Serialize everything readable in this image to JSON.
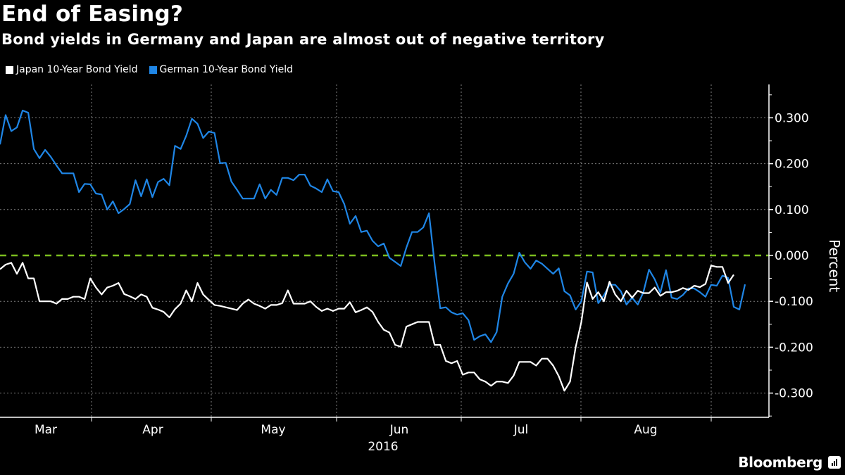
{
  "header": {
    "title": "End of Easing?",
    "subtitle": "Bond yields in Germany and Japan are almost out of negative territory"
  },
  "legend": [
    {
      "label": "Japan 10-Year Bond Yield",
      "color": "#ffffff"
    },
    {
      "label": "German 10-Year Bond Yield",
      "color": "#1f86e6"
    }
  ],
  "branding": {
    "name": "Bloomberg",
    "icon": "bloomberg-logo-icon"
  },
  "colors": {
    "background": "#000000",
    "grid": "#7f7f7f",
    "zero_line": "#7cbd1e",
    "japan": "#ffffff",
    "germany": "#1f86e6"
  },
  "chart_data": {
    "type": "line",
    "title": "End of Easing?",
    "subtitle": "Bond yields in Germany and Japan are almost out of negative territory",
    "xlabel": "2016",
    "ylabel": "Percent",
    "x_ticks": [
      "Mar",
      "Apr",
      "May",
      "Jun",
      "Jul",
      "Aug"
    ],
    "y_ticks": [
      "0.300",
      "0.200",
      "0.100",
      "0.000",
      "-0.100",
      "-0.200",
      "-0.300"
    ],
    "ylim": [
      -0.36,
      0.37
    ],
    "xlim_index": [
      0,
      131
    ],
    "y_axis_position": "right",
    "grid": true,
    "reference_line": {
      "value": 0.0,
      "style": "dashed"
    },
    "legend_position": "top-left",
    "series": [
      {
        "name": "German 10-Year Bond Yield",
        "values": [
          0.242,
          0.306,
          0.271,
          0.279,
          0.316,
          0.311,
          0.232,
          0.212,
          0.23,
          0.215,
          0.196,
          0.179,
          0.179,
          0.179,
          0.138,
          0.156,
          0.155,
          0.135,
          0.133,
          0.1,
          0.118,
          0.092,
          0.101,
          0.112,
          0.164,
          0.129,
          0.166,
          0.127,
          0.16,
          0.167,
          0.153,
          0.239,
          0.232,
          0.261,
          0.298,
          0.287,
          0.256,
          0.27,
          0.267,
          0.201,
          0.202,
          0.161,
          0.143,
          0.124,
          0.124,
          0.124,
          0.155,
          0.124,
          0.143,
          0.132,
          0.169,
          0.169,
          0.164,
          0.176,
          0.176,
          0.152,
          0.146,
          0.138,
          0.166,
          0.14,
          0.138,
          0.112,
          0.069,
          0.086,
          0.051,
          0.054,
          0.032,
          0.02,
          0.026,
          -0.005,
          -0.014,
          -0.023,
          0.017,
          0.051,
          0.051,
          0.061,
          0.092,
          -0.018,
          -0.115,
          -0.113,
          -0.124,
          -0.129,
          -0.126,
          -0.141,
          -0.184,
          -0.176,
          -0.172,
          -0.189,
          -0.167,
          -0.09,
          -0.061,
          -0.04,
          0.006,
          -0.015,
          -0.029,
          -0.011,
          -0.018,
          -0.029,
          -0.04,
          -0.028,
          -0.078,
          -0.087,
          -0.118,
          -0.1,
          -0.035,
          -0.037,
          -0.104,
          -0.087,
          -0.064,
          -0.064,
          -0.078,
          -0.107,
          -0.092,
          -0.107,
          -0.08,
          -0.031,
          -0.052,
          -0.081,
          -0.032,
          -0.092,
          -0.095,
          -0.086,
          -0.072,
          -0.072,
          -0.08,
          -0.09,
          -0.064,
          -0.066,
          -0.044,
          -0.049,
          -0.112,
          -0.118,
          -0.063
        ]
      },
      {
        "name": "Japan 10-Year Bond Yield",
        "values": [
          -0.03,
          -0.02,
          -0.016,
          -0.04,
          -0.016,
          -0.05,
          -0.05,
          -0.1,
          -0.1,
          -0.1,
          -0.105,
          -0.095,
          -0.095,
          -0.09,
          -0.09,
          -0.095,
          -0.05,
          -0.07,
          -0.085,
          -0.07,
          -0.066,
          -0.06,
          -0.084,
          -0.089,
          -0.095,
          -0.085,
          -0.09,
          -0.114,
          -0.118,
          -0.123,
          -0.135,
          -0.117,
          -0.105,
          -0.076,
          -0.1,
          -0.06,
          -0.085,
          -0.097,
          -0.108,
          -0.11,
          -0.113,
          -0.116,
          -0.119,
          -0.105,
          -0.096,
          -0.105,
          -0.11,
          -0.116,
          -0.108,
          -0.108,
          -0.104,
          -0.076,
          -0.105,
          -0.105,
          -0.105,
          -0.1,
          -0.112,
          -0.121,
          -0.116,
          -0.121,
          -0.116,
          -0.116,
          -0.102,
          -0.124,
          -0.119,
          -0.113,
          -0.123,
          -0.145,
          -0.162,
          -0.168,
          -0.195,
          -0.199,
          -0.155,
          -0.15,
          -0.145,
          -0.145,
          -0.145,
          -0.195,
          -0.195,
          -0.23,
          -0.235,
          -0.23,
          -0.26,
          -0.255,
          -0.255,
          -0.27,
          -0.275,
          -0.284,
          -0.275,
          -0.275,
          -0.278,
          -0.262,
          -0.232,
          -0.232,
          -0.232,
          -0.24,
          -0.225,
          -0.225,
          -0.24,
          -0.263,
          -0.295,
          -0.275,
          -0.2,
          -0.145,
          -0.059,
          -0.095,
          -0.08,
          -0.1,
          -0.057,
          -0.085,
          -0.1,
          -0.077,
          -0.092,
          -0.077,
          -0.082,
          -0.082,
          -0.07,
          -0.088,
          -0.08,
          -0.08,
          -0.077,
          -0.071,
          -0.075,
          -0.066,
          -0.069,
          -0.062,
          -0.022,
          -0.025,
          -0.025,
          -0.06,
          -0.042
        ]
      }
    ]
  }
}
